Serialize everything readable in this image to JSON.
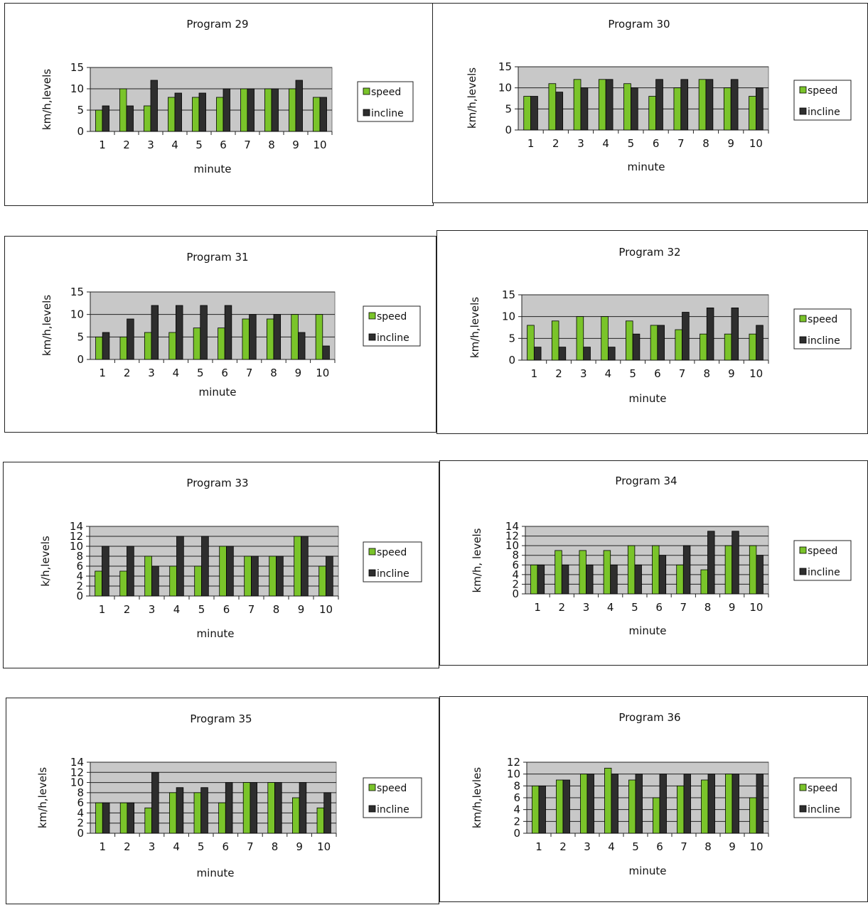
{
  "colors": {
    "speed": "#7ac42a",
    "incline": "#2e2e2e",
    "plot_bg": "#c8c8c8"
  },
  "chart_data": [
    {
      "type": "bar",
      "title": "Program 29",
      "xlabel": "minute",
      "ylabel": "km/h,levels",
      "categories": [
        "1",
        "2",
        "3",
        "4",
        "5",
        "6",
        "7",
        "8",
        "9",
        "10"
      ],
      "y_ticks": [
        "0",
        "5",
        "10",
        "15"
      ],
      "ylim": [
        0,
        15
      ],
      "grid": true,
      "legend": "right",
      "series": [
        {
          "name": "speed",
          "values": [
            5,
            10,
            6,
            8,
            8,
            8,
            10,
            10,
            10,
            8
          ]
        },
        {
          "name": "incline",
          "values": [
            6,
            6,
            12,
            9,
            9,
            10,
            10,
            10,
            12,
            8
          ]
        }
      ]
    },
    {
      "type": "bar",
      "title": "Program 30",
      "xlabel": "minute",
      "ylabel": "km/h,levels",
      "categories": [
        "1",
        "2",
        "3",
        "4",
        "5",
        "6",
        "7",
        "8",
        "9",
        "10"
      ],
      "y_ticks": [
        "0",
        "5",
        "10",
        "15"
      ],
      "ylim": [
        0,
        15
      ],
      "grid": true,
      "legend": "right",
      "series": [
        {
          "name": "speed",
          "values": [
            8,
            11,
            12,
            12,
            11,
            8,
            10,
            12,
            10,
            8
          ]
        },
        {
          "name": "incline",
          "values": [
            8,
            9,
            10,
            12,
            10,
            12,
            12,
            12,
            12,
            10
          ]
        }
      ]
    },
    {
      "type": "bar",
      "title": "Program 31",
      "xlabel": "minute",
      "ylabel": "km/h,levels",
      "categories": [
        "1",
        "2",
        "3",
        "4",
        "5",
        "6",
        "7",
        "8",
        "9",
        "10"
      ],
      "y_ticks": [
        "0",
        "5",
        "10",
        "15"
      ],
      "ylim": [
        0,
        15
      ],
      "grid": true,
      "legend": "right",
      "series": [
        {
          "name": "speed",
          "values": [
            5,
            5,
            6,
            6,
            7,
            7,
            9,
            9,
            10,
            10
          ]
        },
        {
          "name": "incline",
          "values": [
            6,
            9,
            12,
            12,
            12,
            12,
            10,
            10,
            6,
            3
          ]
        }
      ]
    },
    {
      "type": "bar",
      "title": "Program 32",
      "xlabel": "minute",
      "ylabel": "km/h,levels",
      "categories": [
        "1",
        "2",
        "3",
        "4",
        "5",
        "6",
        "7",
        "8",
        "9",
        "10"
      ],
      "y_ticks": [
        "0",
        "5",
        "10",
        "15"
      ],
      "ylim": [
        0,
        15
      ],
      "grid": true,
      "legend": "right",
      "series": [
        {
          "name": "speed",
          "values": [
            8,
            9,
            10,
            10,
            9,
            8,
            7,
            6,
            6,
            6
          ]
        },
        {
          "name": "incline",
          "values": [
            3,
            3,
            3,
            3,
            6,
            8,
            11,
            12,
            12,
            8
          ]
        }
      ]
    },
    {
      "type": "bar",
      "title": "Program 33",
      "xlabel": "minute",
      "ylabel": "k/h,levels",
      "categories": [
        "1",
        "2",
        "3",
        "4",
        "5",
        "6",
        "7",
        "8",
        "9",
        "10"
      ],
      "y_ticks": [
        "0",
        "2",
        "4",
        "6",
        "8",
        "10",
        "12",
        "14"
      ],
      "ylim": [
        0,
        14
      ],
      "grid": true,
      "legend": "right",
      "series": [
        {
          "name": "speed",
          "values": [
            5,
            5,
            8,
            6,
            6,
            10,
            8,
            8,
            12,
            6
          ]
        },
        {
          "name": "incline",
          "values": [
            10,
            10,
            6,
            12,
            12,
            10,
            8,
            8,
            12,
            8
          ]
        }
      ]
    },
    {
      "type": "bar",
      "title": "Program 34",
      "xlabel": "minute",
      "ylabel": "km/h, levels",
      "categories": [
        "1",
        "2",
        "3",
        "4",
        "5",
        "6",
        "7",
        "8",
        "9",
        "10"
      ],
      "y_ticks": [
        "0",
        "2",
        "4",
        "6",
        "8",
        "10",
        "12",
        "14"
      ],
      "ylim": [
        0,
        14
      ],
      "grid": true,
      "legend": "right",
      "series": [
        {
          "name": "speed",
          "values": [
            6,
            9,
            9,
            9,
            10,
            10,
            6,
            5,
            10,
            10
          ]
        },
        {
          "name": "incline",
          "values": [
            6,
            6,
            6,
            6,
            6,
            8,
            10,
            13,
            13,
            8
          ]
        }
      ]
    },
    {
      "type": "bar",
      "title": "Program 35",
      "xlabel": "minute",
      "ylabel": "km/h,levels",
      "categories": [
        "1",
        "2",
        "3",
        "4",
        "5",
        "6",
        "7",
        "8",
        "9",
        "10"
      ],
      "y_ticks": [
        "0",
        "2",
        "4",
        "6",
        "8",
        "10",
        "12",
        "14"
      ],
      "ylim": [
        0,
        14
      ],
      "grid": true,
      "legend": "right",
      "series": [
        {
          "name": "speed",
          "values": [
            6,
            6,
            5,
            8,
            8,
            6,
            10,
            10,
            7,
            5
          ]
        },
        {
          "name": "incline",
          "values": [
            6,
            6,
            12,
            9,
            9,
            10,
            10,
            10,
            10,
            8
          ]
        }
      ]
    },
    {
      "type": "bar",
      "title": "Program 36",
      "xlabel": "minute",
      "ylabel": "km/h,levles",
      "categories": [
        "1",
        "2",
        "3",
        "4",
        "5",
        "6",
        "7",
        "8",
        "9",
        "10"
      ],
      "y_ticks": [
        "0",
        "2",
        "4",
        "6",
        "8",
        "10",
        "12"
      ],
      "ylim": [
        0,
        12
      ],
      "grid": true,
      "legend": "right",
      "series": [
        {
          "name": "speed",
          "values": [
            8,
            9,
            10,
            11,
            9,
            6,
            8,
            9,
            10,
            6
          ]
        },
        {
          "name": "incline",
          "values": [
            8,
            9,
            10,
            10,
            10,
            10,
            10,
            10,
            10,
            10
          ]
        }
      ]
    }
  ]
}
